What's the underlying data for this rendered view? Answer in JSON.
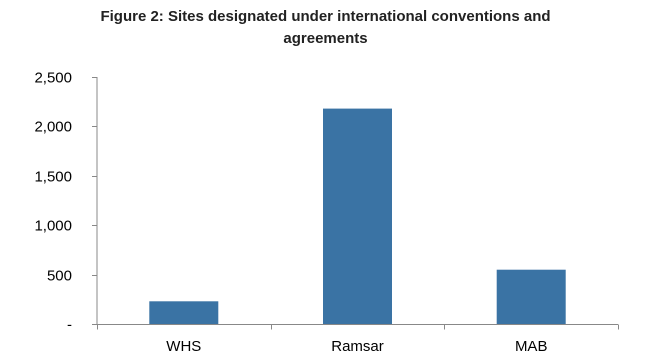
{
  "chart_data": {
    "type": "bar",
    "title_lines": [
      "Figure 2: Sites designated under international conventions and",
      "agreements"
    ],
    "categories": [
      "WHS",
      "Ramsar",
      "MAB"
    ],
    "values": [
      230,
      2180,
      550
    ],
    "ylim": [
      0,
      2500
    ],
    "yticks": [
      {
        "value": 0,
        "label": "-"
      },
      {
        "value": 500,
        "label": "500"
      },
      {
        "value": 1000,
        "label": "1,000"
      },
      {
        "value": 1500,
        "label": "1,500"
      },
      {
        "value": 2000,
        "label": "2,000"
      },
      {
        "value": 2500,
        "label": "2,500"
      }
    ],
    "bar_color": "#3a73a4",
    "axis_color": "#888888",
    "grid": false,
    "legend": "none"
  }
}
